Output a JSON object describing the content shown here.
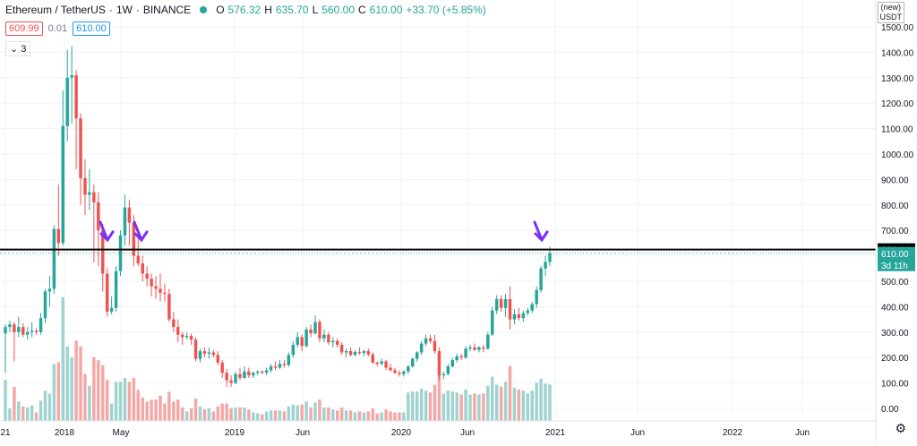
{
  "header": {
    "symbol": "Ethereum / TetherUS",
    "interval": "1W",
    "exchange": "BINANCE",
    "o_label": "O",
    "o_value": "576.32",
    "h_label": "H",
    "h_value": "635.70",
    "l_label": "L",
    "l_value": "560.00",
    "c_label": "C",
    "c_value": "610.00",
    "change": "+33.70 (+5.85%)",
    "sell_price": "609.99",
    "spread": "0.01",
    "buy_price": "610.00",
    "indicators_count": "3"
  },
  "currency": {
    "line1": "(new)",
    "line2": "USDT"
  },
  "colors": {
    "up": "#26a69a",
    "down": "#ef5350",
    "vol_up": "#9fd3cf",
    "vol_down": "#f4a8a6",
    "hline": "#000000",
    "arrow": "#7b2ff7"
  },
  "price_axis": {
    "ticks": [
      "1500.00",
      "1400.00",
      "1300.00",
      "1200.00",
      "1100.00",
      "1000.00",
      "900.00",
      "800.00",
      "700.00",
      "600.00",
      "500.00",
      "400.00",
      "300.00",
      "200.00",
      "100.00",
      "0.00"
    ],
    "hline_label": "624.44",
    "last_label": "610.00",
    "countdown": "3d 11h"
  },
  "time_axis": {
    "labels": [
      "21",
      "2018",
      "May",
      "2019",
      "Jun",
      "2020",
      "Jun",
      "2021",
      "Jun",
      "2022",
      "Jun"
    ]
  },
  "chart_data": {
    "type": "candlestick",
    "interval": "1W",
    "ylim": [
      0,
      1500
    ],
    "hline": 624.44,
    "last_price": 610.0,
    "candles": [
      {
        "o": 295,
        "h": 330,
        "l": 140,
        "c": 320
      },
      {
        "o": 320,
        "h": 345,
        "l": 300,
        "c": 330
      },
      {
        "o": 330,
        "h": 340,
        "l": 185,
        "c": 300
      },
      {
        "o": 300,
        "h": 360,
        "l": 280,
        "c": 320
      },
      {
        "o": 320,
        "h": 335,
        "l": 280,
        "c": 290
      },
      {
        "o": 290,
        "h": 320,
        "l": 270,
        "c": 300
      },
      {
        "o": 300,
        "h": 340,
        "l": 280,
        "c": 305
      },
      {
        "o": 305,
        "h": 315,
        "l": 290,
        "c": 300
      },
      {
        "o": 300,
        "h": 375,
        "l": 290,
        "c": 355
      },
      {
        "o": 355,
        "h": 470,
        "l": 335,
        "c": 460
      },
      {
        "o": 460,
        "h": 520,
        "l": 400,
        "c": 470
      },
      {
        "o": 470,
        "h": 720,
        "l": 450,
        "c": 705
      },
      {
        "o": 705,
        "h": 880,
        "l": 600,
        "c": 650
      },
      {
        "o": 650,
        "h": 1250,
        "l": 640,
        "c": 1110
      },
      {
        "o": 1110,
        "h": 1410,
        "l": 1050,
        "c": 1300
      },
      {
        "o": 1300,
        "h": 1425,
        "l": 1120,
        "c": 1310
      },
      {
        "o": 1310,
        "h": 1330,
        "l": 940,
        "c": 1140
      },
      {
        "o": 1140,
        "h": 1160,
        "l": 800,
        "c": 905
      },
      {
        "o": 905,
        "h": 980,
        "l": 760,
        "c": 840
      },
      {
        "o": 840,
        "h": 940,
        "l": 780,
        "c": 850
      },
      {
        "o": 850,
        "h": 880,
        "l": 575,
        "c": 810
      },
      {
        "o": 810,
        "h": 850,
        "l": 560,
        "c": 700
      },
      {
        "o": 700,
        "h": 725,
        "l": 460,
        "c": 530
      },
      {
        "o": 530,
        "h": 550,
        "l": 360,
        "c": 380
      },
      {
        "o": 380,
        "h": 440,
        "l": 370,
        "c": 395
      },
      {
        "o": 395,
        "h": 560,
        "l": 380,
        "c": 540
      },
      {
        "o": 540,
        "h": 700,
        "l": 520,
        "c": 680
      },
      {
        "o": 680,
        "h": 840,
        "l": 640,
        "c": 790
      },
      {
        "o": 790,
        "h": 820,
        "l": 640,
        "c": 730
      },
      {
        "o": 730,
        "h": 760,
        "l": 560,
        "c": 600
      },
      {
        "o": 600,
        "h": 700,
        "l": 560,
        "c": 570
      },
      {
        "o": 570,
        "h": 600,
        "l": 500,
        "c": 530
      },
      {
        "o": 530,
        "h": 560,
        "l": 480,
        "c": 510
      },
      {
        "o": 510,
        "h": 530,
        "l": 440,
        "c": 480
      },
      {
        "o": 480,
        "h": 520,
        "l": 430,
        "c": 470
      },
      {
        "o": 470,
        "h": 530,
        "l": 420,
        "c": 455
      },
      {
        "o": 455,
        "h": 490,
        "l": 420,
        "c": 450
      },
      {
        "o": 450,
        "h": 470,
        "l": 340,
        "c": 350
      },
      {
        "o": 350,
        "h": 380,
        "l": 300,
        "c": 320
      },
      {
        "o": 320,
        "h": 350,
        "l": 260,
        "c": 290
      },
      {
        "o": 290,
        "h": 300,
        "l": 250,
        "c": 280
      },
      {
        "o": 280,
        "h": 300,
        "l": 270,
        "c": 285
      },
      {
        "o": 285,
        "h": 295,
        "l": 250,
        "c": 270
      },
      {
        "o": 270,
        "h": 280,
        "l": 185,
        "c": 195
      },
      {
        "o": 195,
        "h": 235,
        "l": 180,
        "c": 225
      },
      {
        "o": 225,
        "h": 240,
        "l": 200,
        "c": 215
      },
      {
        "o": 215,
        "h": 240,
        "l": 195,
        "c": 220
      },
      {
        "o": 220,
        "h": 230,
        "l": 200,
        "c": 210
      },
      {
        "o": 210,
        "h": 225,
        "l": 170,
        "c": 180
      },
      {
        "o": 180,
        "h": 190,
        "l": 120,
        "c": 140
      },
      {
        "o": 140,
        "h": 155,
        "l": 85,
        "c": 110
      },
      {
        "o": 110,
        "h": 130,
        "l": 85,
        "c": 100
      },
      {
        "o": 100,
        "h": 145,
        "l": 95,
        "c": 135
      },
      {
        "o": 135,
        "h": 160,
        "l": 110,
        "c": 120
      },
      {
        "o": 120,
        "h": 165,
        "l": 115,
        "c": 145
      },
      {
        "o": 145,
        "h": 160,
        "l": 120,
        "c": 130
      },
      {
        "o": 130,
        "h": 145,
        "l": 120,
        "c": 140
      },
      {
        "o": 140,
        "h": 150,
        "l": 130,
        "c": 145
      },
      {
        "o": 145,
        "h": 150,
        "l": 135,
        "c": 140
      },
      {
        "o": 140,
        "h": 160,
        "l": 130,
        "c": 150
      },
      {
        "o": 150,
        "h": 175,
        "l": 140,
        "c": 165
      },
      {
        "o": 165,
        "h": 185,
        "l": 150,
        "c": 160
      },
      {
        "o": 160,
        "h": 190,
        "l": 155,
        "c": 175
      },
      {
        "o": 175,
        "h": 190,
        "l": 160,
        "c": 170
      },
      {
        "o": 170,
        "h": 220,
        "l": 165,
        "c": 210
      },
      {
        "o": 210,
        "h": 265,
        "l": 200,
        "c": 250
      },
      {
        "o": 250,
        "h": 300,
        "l": 240,
        "c": 280
      },
      {
        "o": 280,
        "h": 290,
        "l": 225,
        "c": 245
      },
      {
        "o": 245,
        "h": 320,
        "l": 240,
        "c": 310
      },
      {
        "o": 310,
        "h": 330,
        "l": 280,
        "c": 295
      },
      {
        "o": 295,
        "h": 365,
        "l": 290,
        "c": 340
      },
      {
        "o": 340,
        "h": 350,
        "l": 260,
        "c": 275
      },
      {
        "o": 275,
        "h": 310,
        "l": 260,
        "c": 290
      },
      {
        "o": 290,
        "h": 300,
        "l": 250,
        "c": 260
      },
      {
        "o": 260,
        "h": 280,
        "l": 240,
        "c": 265
      },
      {
        "o": 265,
        "h": 275,
        "l": 240,
        "c": 250
      },
      {
        "o": 250,
        "h": 260,
        "l": 210,
        "c": 220
      },
      {
        "o": 220,
        "h": 235,
        "l": 200,
        "c": 225
      },
      {
        "o": 225,
        "h": 240,
        "l": 205,
        "c": 210
      },
      {
        "o": 210,
        "h": 230,
        "l": 205,
        "c": 222
      },
      {
        "o": 222,
        "h": 240,
        "l": 210,
        "c": 218
      },
      {
        "o": 218,
        "h": 230,
        "l": 205,
        "c": 225
      },
      {
        "o": 225,
        "h": 235,
        "l": 205,
        "c": 212
      },
      {
        "o": 212,
        "h": 220,
        "l": 175,
        "c": 180
      },
      {
        "o": 180,
        "h": 185,
        "l": 165,
        "c": 175
      },
      {
        "o": 175,
        "h": 195,
        "l": 170,
        "c": 185
      },
      {
        "o": 185,
        "h": 190,
        "l": 150,
        "c": 160
      },
      {
        "o": 160,
        "h": 175,
        "l": 145,
        "c": 150
      },
      {
        "o": 150,
        "h": 160,
        "l": 135,
        "c": 140
      },
      {
        "o": 140,
        "h": 150,
        "l": 125,
        "c": 135
      },
      {
        "o": 135,
        "h": 150,
        "l": 125,
        "c": 145
      },
      {
        "o": 145,
        "h": 170,
        "l": 135,
        "c": 165
      },
      {
        "o": 165,
        "h": 200,
        "l": 160,
        "c": 195
      },
      {
        "o": 195,
        "h": 225,
        "l": 185,
        "c": 220
      },
      {
        "o": 220,
        "h": 265,
        "l": 210,
        "c": 255
      },
      {
        "o": 255,
        "h": 290,
        "l": 245,
        "c": 275
      },
      {
        "o": 275,
        "h": 290,
        "l": 255,
        "c": 265
      },
      {
        "o": 265,
        "h": 290,
        "l": 215,
        "c": 225
      },
      {
        "o": 225,
        "h": 240,
        "l": 110,
        "c": 130
      },
      {
        "o": 130,
        "h": 145,
        "l": 115,
        "c": 135
      },
      {
        "o": 135,
        "h": 175,
        "l": 130,
        "c": 165
      },
      {
        "o": 165,
        "h": 200,
        "l": 160,
        "c": 190
      },
      {
        "o": 190,
        "h": 215,
        "l": 180,
        "c": 205
      },
      {
        "o": 205,
        "h": 215,
        "l": 190,
        "c": 200
      },
      {
        "o": 200,
        "h": 245,
        "l": 195,
        "c": 235
      },
      {
        "o": 235,
        "h": 250,
        "l": 225,
        "c": 240
      },
      {
        "o": 240,
        "h": 255,
        "l": 225,
        "c": 230
      },
      {
        "o": 230,
        "h": 245,
        "l": 220,
        "c": 240
      },
      {
        "o": 240,
        "h": 250,
        "l": 220,
        "c": 235
      },
      {
        "o": 235,
        "h": 300,
        "l": 230,
        "c": 290
      },
      {
        "o": 290,
        "h": 400,
        "l": 285,
        "c": 385
      },
      {
        "o": 385,
        "h": 445,
        "l": 370,
        "c": 430
      },
      {
        "o": 430,
        "h": 445,
        "l": 380,
        "c": 395
      },
      {
        "o": 395,
        "h": 450,
        "l": 360,
        "c": 430
      },
      {
        "o": 430,
        "h": 480,
        "l": 310,
        "c": 350
      },
      {
        "o": 350,
        "h": 390,
        "l": 330,
        "c": 370
      },
      {
        "o": 370,
        "h": 395,
        "l": 345,
        "c": 355
      },
      {
        "o": 355,
        "h": 385,
        "l": 340,
        "c": 375
      },
      {
        "o": 375,
        "h": 395,
        "l": 365,
        "c": 385
      },
      {
        "o": 385,
        "h": 420,
        "l": 375,
        "c": 410
      },
      {
        "o": 410,
        "h": 480,
        "l": 395,
        "c": 465
      },
      {
        "o": 465,
        "h": 560,
        "l": 455,
        "c": 550
      },
      {
        "o": 550,
        "h": 600,
        "l": 520,
        "c": 576
      },
      {
        "o": 576,
        "h": 636,
        "l": 560,
        "c": 610
      }
    ],
    "volume_max": 1
  }
}
